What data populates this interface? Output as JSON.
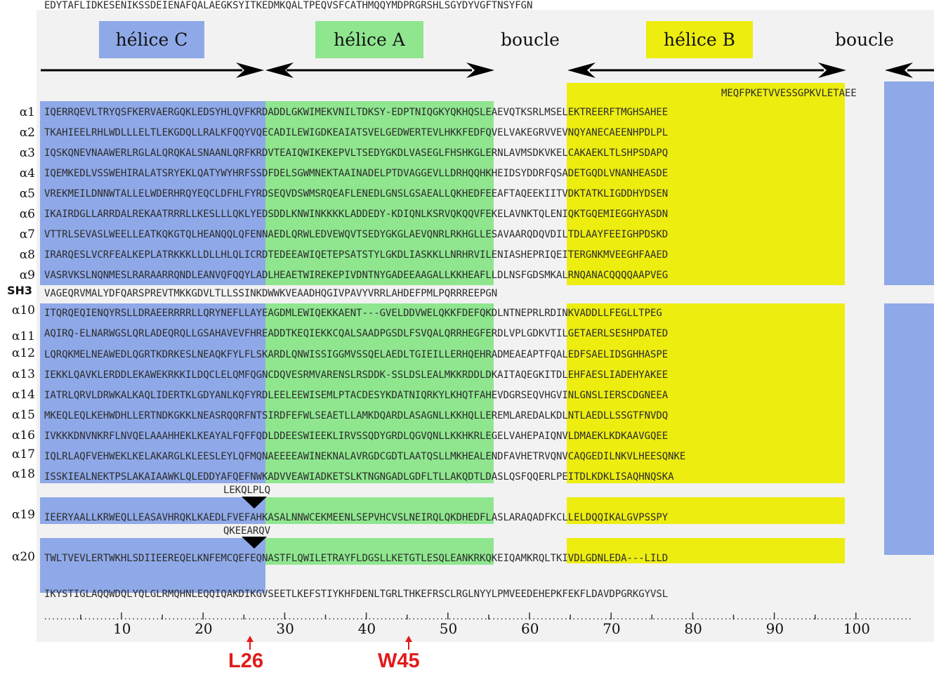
{
  "regions": [
    {
      "key": "helixC",
      "label": "hélice C",
      "color": "#8fa9e8"
    },
    {
      "key": "helixA",
      "label": "hélice A",
      "color": "#8fe68f"
    },
    {
      "key": "loop1",
      "label": "boucle",
      "color": "#f2f2f2"
    },
    {
      "key": "helixB",
      "label": "hélice B",
      "color": "#eded10"
    },
    {
      "key": "loop2",
      "label": "boucle",
      "color": "#f2f2f2"
    }
  ],
  "header_row": "MEQFPKETVVESSGPKVLETAEE",
  "rows": [
    {
      "label": "α1",
      "seq": "IQERRQEVLTRYQSFKERVAERGQKLEDSYHLQVFKRDADDLGKWIMEKVNILTDKSY-EDPTNIQGKYQKHQSLEAEVQTKSRLMSELEKTREERFTMGHSAHEE"
    },
    {
      "label": "α2",
      "seq": "TKAHIEELRHLWDLLLELTLEKGDQLLRALKFQQYVQECADILEWIGDKEAIATSVELGEDWERTEVLHKKFEDFQVELVAKEGRVVEVNQYANECAEENHPDLPL"
    },
    {
      "label": "α3",
      "seq": "IQSKQNEVNAAWERLRGLALQRQKALSNAANLQRFKRDVTEAIQWIKEKEPVLTSEDYGKDLVASEGLFHSHKGLERNLAVMSDKVKELCAKAEKLTLSHPSDAPQ"
    },
    {
      "label": "α4",
      "seq": "IQEMKEDLVSSWEHIRALATSRYEKLQATYWYHRFSSDFDELSGWMNEKTAAINADELPTDVAGGEVLLDRHQQHKHEIDSYDDRFQSADETGQDLVNANHEASDE"
    },
    {
      "label": "α5",
      "seq": "VREKMEILDNNWTALLELWDERHRQYEQCLDFHLFYRDSEQVDSWMSRQEAFLENEDLGNSLGSAEALLQKHEDFEEAFTAQEEKIITVDKTATKLIGDDHYDSEN"
    },
    {
      "label": "α6",
      "seq": "IKAIRDGLLARRDALREKAATRRRLLKESLLLQKLYEDSDDLKNWINKKKKLADDEDY-KDIQNLKSRVQKQQVFEKELAVNKTQLENIQKTGQEMIEGGHYASDN"
    },
    {
      "label": "α7",
      "seq": "VTTRLSEVASLWEELLEATKQKGTQLHEANQQLQFENNAEDLQRWLEDVEWQVTSEDYGKGLAEVQNRLRKHGLLESAVAARQDQVDILTDLAAYFEEIGHPDSKD"
    },
    {
      "label": "α8",
      "seq": "IRARQESLVCRFEALKEPLATRKKKLLDLLHLQLICRDTEDEEAWIQETEPSATSTYLGKDLIASKKLLNRHRVILENIASHEPRIQEITERGNKMVEEGHFAAED"
    },
    {
      "label": "α9",
      "seq": "VASRVKSLNQNMESLRARAARRQNDLEANVQFQQYLADLHEAETWIREKEPIVDNTNYGADEEAAGALLKKHEAFLLDLNSFGDSMKALRNQANACQQQQAAPVEG"
    },
    {
      "label": "SH3",
      "seq": "VAGEQRVMALYDFQARSPREVTMKKGDVLTLLSSINKDWWKVEAADHQGIVPAVYVRRLAHDEFPMLPQRRREEPGN"
    },
    {
      "label": "α10",
      "seq": "ITQRQEQIENQYRSLLDRAEERRRRLLQRYNEFLLAYEAGDMLEWIQEKKAENT---GVELDDVWELQKKFDEFQKDLNTNEPRLRDINKVADDLLFEGLLTPEG"
    },
    {
      "label": "α11",
      "seq": "AQIRQ-ELNARWGSLQRLADEQRQLLGSAHAVEVFHREADDTKEQIEKKCQALSAADPGSDLFSVQALQRRHEGFERDLVPLGDKVTILGETAERLSESHPDATED"
    },
    {
      "label": "α12",
      "seq": "LQRQKMELNEAWEDLQGRTKDRKESLNEAQKFYLFLSKARDLQNWISSIGGMVSSQELAEDLTGIEILLERHQEHRADMEAEAPTFQALEDFSAELIDSGHHASPE"
    },
    {
      "label": "α13",
      "seq": "IEKKLQAVKLERDDLEKAWEKRKKILDQCLELQMFQGNCDQVESRMVARENSLRSDDK-SSLDSLEALMKKRDDLDKAITAQEGKITDLEHFAESLIADEHYAKEE"
    },
    {
      "label": "α14",
      "seq": "IATRLQRVLDRWKALKAQLIDERTKLGDYANLKQFYRDLEELEEWISEMLPTACDESYKDATNIQRKYLKHQTFAHEVDGRSEQVHGVINLGNSLIERSCDGNEEA"
    },
    {
      "label": "α15",
      "seq": "MKEQLEQLKEHWDHLLERTNDKGKKLNEASRQQRFNTSIRDFEFWLSEAETLLAMKDQARDLASAGNLLKKHQLLEREMLAREDALKDLNTLAEDLLSSGTFNVDQ"
    },
    {
      "label": "α16",
      "seq": "IVKKKDNVNKRFLNVQELAAAHHEKLKEAYALFQFFQDLDDEESWIEEKLIRVSSQDYGRDLQGVQNLLKKHKRLEGELVAHEPAIQNVLDMAEKLKDKAAVGQEE"
    },
    {
      "label": "α17",
      "seq": "IQLRLAQFVEHWEKLKELAKARGLKLEESLEYLQFMQNAEEEEAWINEKNALAVRGDCGDTLAATQSLLMKHEALENDFAVHETRVQNVCAQGEDILNKVLHEESQNKE"
    },
    {
      "label": "α18",
      "seq": "ISSKIEALNEKTPSLAKAIAAWKLQLEDDYAFQEFNWKADVVEAWIADKETSLKTNGNGADLGDFLTLLAKQDTLDASLQSFQQERLPEITDLKDKLISAQHNQSKA"
    },
    {
      "label": "α19",
      "seq": "IEERYAALLKRWEQLLEASAVHRQKLKAEDLFVEFAHKASALNNWCEKMEENLSEPVHCVSLNEIRQLQKDHEDFLASLARAQADFKCLLELDQQIKALGVPSSPY"
    },
    {
      "label": "α20",
      "seq": "TWLTVEVLERTWKHLSDIIEEREQELKNFEMCQEFEQNASTFLQWILETRAYFLDGSLLKETGTLESQLEANKRKQKEIQAMKRQLTKIVDLGDNLEDA---LILD"
    },
    {
      "label": "",
      "seq": "IKYSTIGLAQQWDQLYQLGLRMQHNLEQQIQAKDIKGVSEETLKEFSTIYKHFDENLTGRLTHKEFRSCLRGLNYYLPMVEEDEHEPKFEKFLDAVDPGRKGYVSL"
    },
    {
      "label": "",
      "seq": "EDYTAFLIDKESENIKSSDEIENAFQALAEGKSYITKEDMKQALTPEQVSFCATHMQQYMDPRGRSHLSGYDYVGFTNSYFGN"
    }
  ],
  "inserts": [
    {
      "after_row": 17,
      "seq": "LEKQLPLQ"
    },
    {
      "after_row": 18,
      "seq": "QKEEARQV"
    }
  ],
  "ruler": {
    "ticks": [
      "10",
      "20",
      "30",
      "40",
      "50",
      "60",
      "70",
      "80",
      "90",
      "100"
    ]
  },
  "markers": [
    {
      "label": "L26",
      "position": 26
    },
    {
      "label": "W45",
      "position": 45
    }
  ]
}
